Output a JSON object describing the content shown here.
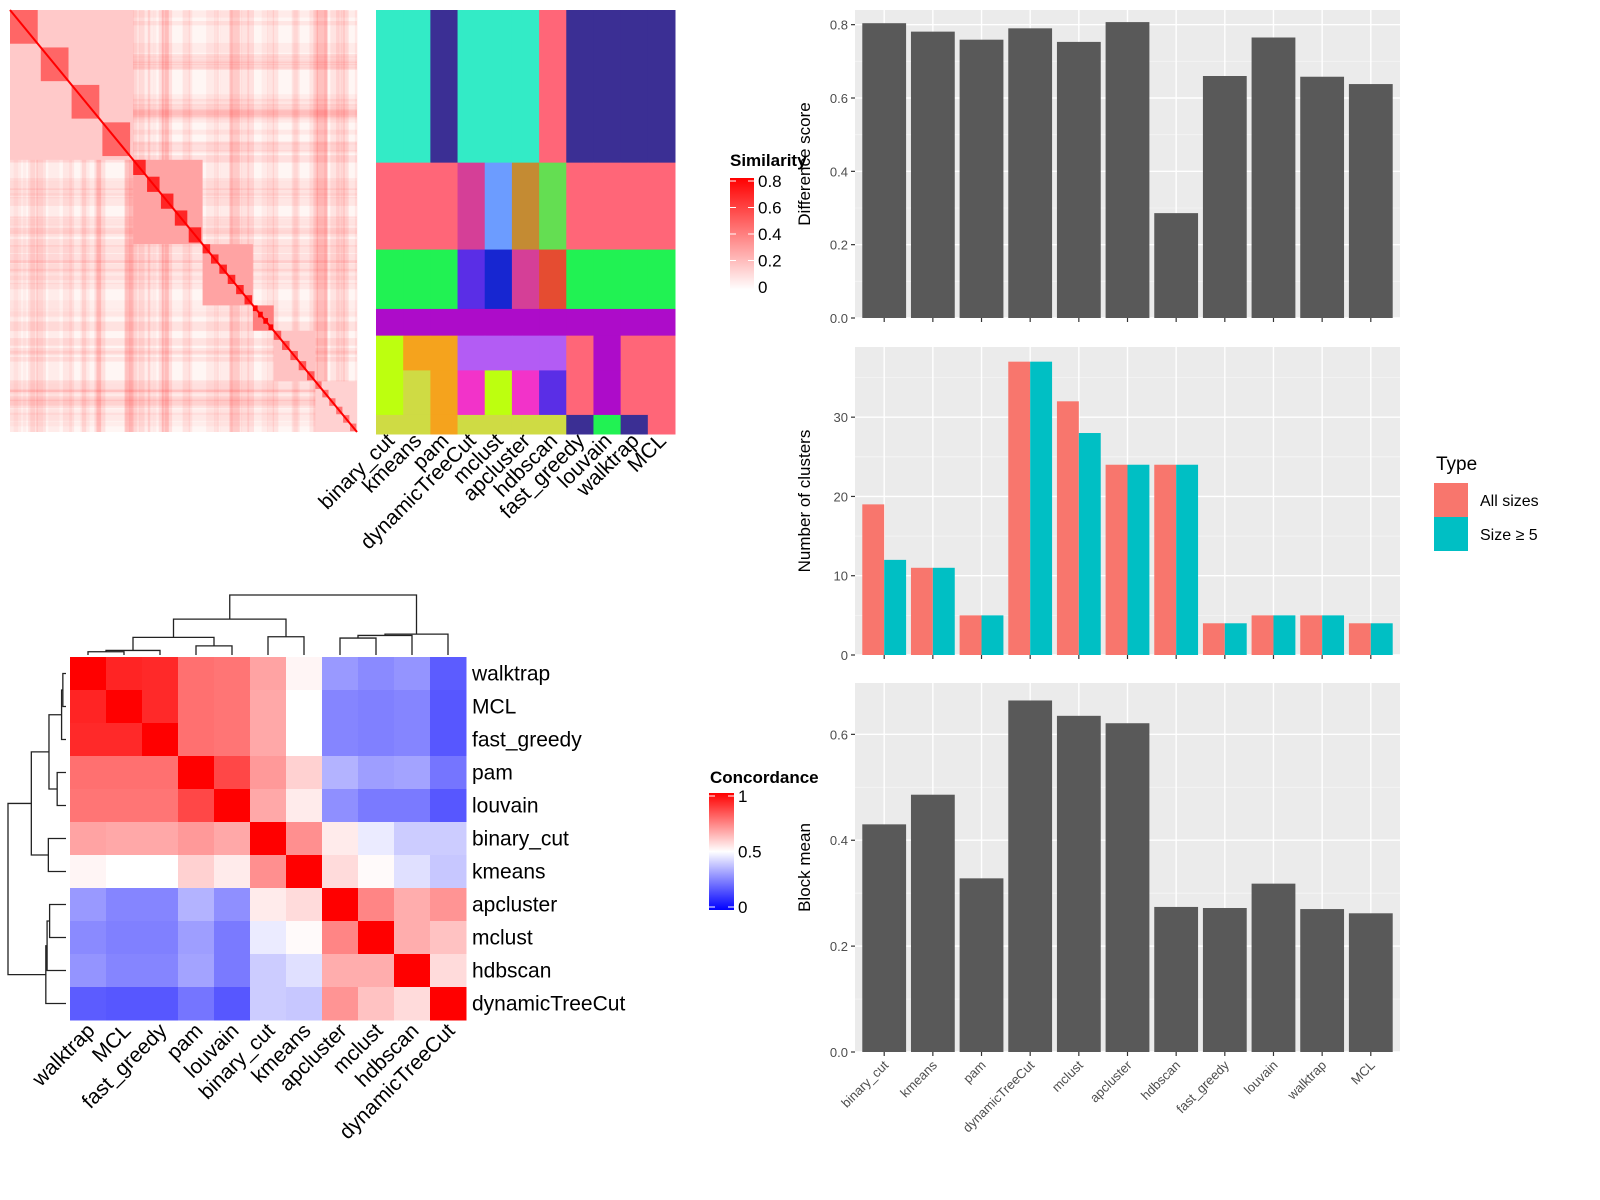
{
  "chart_data": [
    {
      "id": "similarity_heatmap",
      "type": "heatmap",
      "title": "",
      "legend": {
        "title": "Similarity",
        "ticks": [
          "0",
          "0.2",
          "0.4",
          "0.6",
          "0.8"
        ],
        "range": [
          0,
          0.8
        ],
        "colors": [
          "#ffffff",
          "#ff0000"
        ],
        "placement": "right"
      },
      "description": "Consensus similarity matrix of samples, with diagonal red blocks",
      "blocks": [
        {
          "start": 0.0,
          "end": 0.355,
          "level": 0.35
        },
        {
          "start": 0.355,
          "end": 0.555,
          "level": 0.6
        },
        {
          "start": 0.555,
          "end": 0.7,
          "level": 0.6
        },
        {
          "start": 0.7,
          "end": 0.76,
          "level": 0.85
        },
        {
          "start": 0.76,
          "end": 0.88,
          "level": 0.4
        },
        {
          "start": 0.88,
          "end": 1.0,
          "level": 0.3
        }
      ]
    },
    {
      "id": "cluster_label_heatmap",
      "type": "heatmap",
      "title": "",
      "columns": [
        "binary_cut",
        "kmeans",
        "pam",
        "dynamicTreeCut",
        "mclust",
        "apcluster",
        "hdbscan",
        "fast_greedy",
        "louvain",
        "walktrap",
        "MCL"
      ],
      "row_groups": [
        {
          "start": 0.0,
          "end": 0.36,
          "colors": [
            "#33EBC6",
            "#33EBC6",
            "#3B2F94",
            "#33EBC6",
            "#33EBC6",
            "#33EBC6",
            "#FF6678",
            "#3B2F94",
            "#3B2F94",
            "#3B2F94",
            "#3B2F94"
          ]
        },
        {
          "start": 0.36,
          "end": 0.565,
          "colors": [
            "#FF6678",
            "#FF6678",
            "#FF6678",
            "#D53F97",
            "#6C9CFF",
            "#C48B33",
            "#64DE52",
            "#FF6678",
            "#FF6678",
            "#FF6678",
            "#FF6678"
          ]
        },
        {
          "start": 0.565,
          "end": 0.705,
          "colors": [
            "#21F253",
            "#21F253",
            "#21F253",
            "#5A2EE6",
            "#1726D1",
            "#D53F97",
            "#E54C31",
            "#21F253",
            "#21F253",
            "#21F253",
            "#21F253"
          ]
        },
        {
          "start": 0.705,
          "end": 0.768,
          "colors": [
            "#AD0CC9",
            "#AD0CC9",
            "#AD0CC9",
            "#AD0CC9",
            "#AD0CC9",
            "#AD0CC9",
            "#AD0CC9",
            "#AD0CC9",
            "#AD0CC9",
            "#AD0CC9",
            "#AD0CC9"
          ]
        },
        {
          "start": 0.768,
          "end": 0.85,
          "colors": [
            "#BDFF0F",
            "#F5A31D",
            "#F5A31D",
            "#B35CF4",
            "#B35CF4",
            "#B35CF4",
            "#B35CF4",
            "#FF6678",
            "#AD0CC9",
            "#FF6678",
            "#FF6678"
          ]
        },
        {
          "start": 0.85,
          "end": 0.955,
          "colors": [
            "#BDFF0F",
            "#CFDB44",
            "#F5A31D",
            "#F233C9",
            "#BDFF0F",
            "#F233C9",
            "#5A2EE6",
            "#FF6678",
            "#AD0CC9",
            "#FF6678",
            "#FF6678"
          ]
        },
        {
          "start": 0.955,
          "end": 1.0,
          "colors": [
            "#CFDB44",
            "#CFDB44",
            "#F5A31D",
            "#CFDB44",
            "#CFDB44",
            "#CFDB44",
            "#CFDB44",
            "#3B2F94",
            "#21F253",
            "#3B2F94",
            "#FF6678"
          ]
        }
      ]
    },
    {
      "id": "difference_score",
      "type": "bar",
      "title": "",
      "xlabel": "",
      "ylabel": "Difference score",
      "categories": [
        "binary_cut",
        "kmeans",
        "pam",
        "dynamicTreeCut",
        "mclust",
        "apcluster",
        "hdbscan",
        "fast_greedy",
        "louvain",
        "walktrap",
        "MCL"
      ],
      "values": [
        0.804,
        0.781,
        0.759,
        0.79,
        0.753,
        0.807,
        0.286,
        0.66,
        0.765,
        0.658,
        0.638
      ],
      "ylim": [
        0,
        0.84
      ],
      "yticks": [
        0.0,
        0.2,
        0.4,
        0.6,
        0.8
      ],
      "ytick_labels": [
        "0.0",
        "0.2",
        "0.4",
        "0.6",
        "0.8"
      ],
      "bar_color": "#595959",
      "grid": true
    },
    {
      "id": "number_of_clusters",
      "type": "bar",
      "title": "",
      "xlabel": "",
      "ylabel": "Number of clusters",
      "categories": [
        "binary_cut",
        "kmeans",
        "pam",
        "dynamicTreeCut",
        "mclust",
        "apcluster",
        "hdbscan",
        "fast_greedy",
        "louvain",
        "walktrap",
        "MCL"
      ],
      "series": [
        {
          "name": "All sizes",
          "color": "#F8766D",
          "values": [
            19,
            11,
            5,
            37,
            32,
            24,
            24,
            4,
            5,
            5,
            4
          ]
        },
        {
          "name": "Size ≥ 5",
          "color": "#00BFC4",
          "values": [
            12,
            11,
            5,
            37,
            28,
            24,
            24,
            4,
            5,
            5,
            4
          ]
        }
      ],
      "ylim": [
        0,
        38.85
      ],
      "yticks": [
        0,
        10,
        20,
        30
      ],
      "ytick_labels": [
        "0",
        "10",
        "20",
        "30"
      ],
      "legend": {
        "title": "Type",
        "placement": "right"
      },
      "grid": true
    },
    {
      "id": "block_mean",
      "type": "bar",
      "title": "",
      "xlabel": "",
      "ylabel": "Block mean",
      "categories": [
        "binary_cut",
        "kmeans",
        "pam",
        "dynamicTreeCut",
        "mclust",
        "apcluster",
        "hdbscan",
        "fast_greedy",
        "louvain",
        "walktrap",
        "MCL"
      ],
      "values": [
        0.43,
        0.486,
        0.328,
        0.664,
        0.635,
        0.621,
        0.274,
        0.272,
        0.318,
        0.27,
        0.262
      ],
      "ylim": [
        0,
        0.697
      ],
      "yticks": [
        0.0,
        0.2,
        0.4,
        0.6
      ],
      "ytick_labels": [
        "0.0",
        "0.2",
        "0.4",
        "0.6"
      ],
      "bar_color": "#595959",
      "grid": true
    },
    {
      "id": "concordance_heatmap",
      "type": "heatmap",
      "title": "",
      "legend": {
        "title": "Concordance",
        "ticks": [
          "0",
          "0.5",
          "1"
        ],
        "range": [
          0,
          1
        ],
        "colors": [
          "#0000ff",
          "#ffffff",
          "#ff0000"
        ],
        "placement": "right"
      },
      "labels": [
        "walktrap",
        "MCL",
        "fast_greedy",
        "pam",
        "louvain",
        "binary_cut",
        "kmeans",
        "apcluster",
        "mclust",
        "hdbscan",
        "dynamicTreeCut"
      ],
      "matrix": [
        [
          1.0,
          0.93,
          0.92,
          0.78,
          0.77,
          0.68,
          0.52,
          0.3,
          0.27,
          0.29,
          0.18
        ],
        [
          0.93,
          1.0,
          0.92,
          0.78,
          0.77,
          0.67,
          0.5,
          0.26,
          0.25,
          0.26,
          0.17
        ],
        [
          0.92,
          0.92,
          1.0,
          0.78,
          0.77,
          0.67,
          0.5,
          0.26,
          0.25,
          0.26,
          0.17
        ],
        [
          0.78,
          0.78,
          0.78,
          1.0,
          0.86,
          0.7,
          0.59,
          0.35,
          0.31,
          0.32,
          0.23
        ],
        [
          0.77,
          0.77,
          0.77,
          0.86,
          1.0,
          0.67,
          0.54,
          0.28,
          0.24,
          0.24,
          0.17
        ],
        [
          0.68,
          0.67,
          0.67,
          0.7,
          0.67,
          1.0,
          0.72,
          0.54,
          0.46,
          0.4,
          0.4
        ],
        [
          0.52,
          0.5,
          0.5,
          0.59,
          0.54,
          0.72,
          1.0,
          0.57,
          0.51,
          0.44,
          0.39
        ],
        [
          0.3,
          0.26,
          0.26,
          0.35,
          0.28,
          0.54,
          0.57,
          1.0,
          0.74,
          0.66,
          0.71
        ],
        [
          0.27,
          0.25,
          0.25,
          0.31,
          0.24,
          0.46,
          0.51,
          0.74,
          1.0,
          0.66,
          0.62
        ],
        [
          0.29,
          0.26,
          0.26,
          0.32,
          0.24,
          0.4,
          0.44,
          0.66,
          0.66,
          1.0,
          0.57
        ],
        [
          0.18,
          0.17,
          0.17,
          0.23,
          0.17,
          0.4,
          0.39,
          0.71,
          0.62,
          0.57,
          1.0
        ]
      ],
      "dendrogram": {
        "merges": [
          {
            "a": [
              "walktrap"
            ],
            "b": [
              "MCL"
            ],
            "height": 0.05
          },
          {
            "a": [
              "walktrap",
              "MCL"
            ],
            "b": [
              "fast_greedy"
            ],
            "height": 0.07
          },
          {
            "a": [
              "pam"
            ],
            "b": [
              "louvain"
            ],
            "height": 0.14
          },
          {
            "a": [
              "walktrap",
              "MCL",
              "fast_greedy"
            ],
            "b": [
              "pam",
              "louvain"
            ],
            "height": 0.27
          },
          {
            "a": [
              "binary_cut"
            ],
            "b": [
              "kmeans"
            ],
            "height": 0.28
          },
          {
            "a": [
              "walktrap",
              "MCL",
              "fast_greedy",
              "pam",
              "louvain"
            ],
            "b": [
              "binary_cut",
              "kmeans"
            ],
            "height": 0.55
          },
          {
            "a": [
              "apcluster"
            ],
            "b": [
              "mclust"
            ],
            "height": 0.26
          },
          {
            "a": [
              "apcluster",
              "mclust"
            ],
            "b": [
              "hdbscan"
            ],
            "height": 0.3
          },
          {
            "a": [
              "apcluster",
              "mclust",
              "hdbscan"
            ],
            "b": [
              "dynamicTreeCut"
            ],
            "height": 0.32
          },
          {
            "a": [
              "walktrap",
              "MCL",
              "fast_greedy",
              "pam",
              "louvain",
              "binary_cut",
              "kmeans"
            ],
            "b": [
              "apcluster",
              "mclust",
              "hdbscan",
              "dynamicTreeCut"
            ],
            "height": 0.92
          }
        ]
      }
    }
  ]
}
